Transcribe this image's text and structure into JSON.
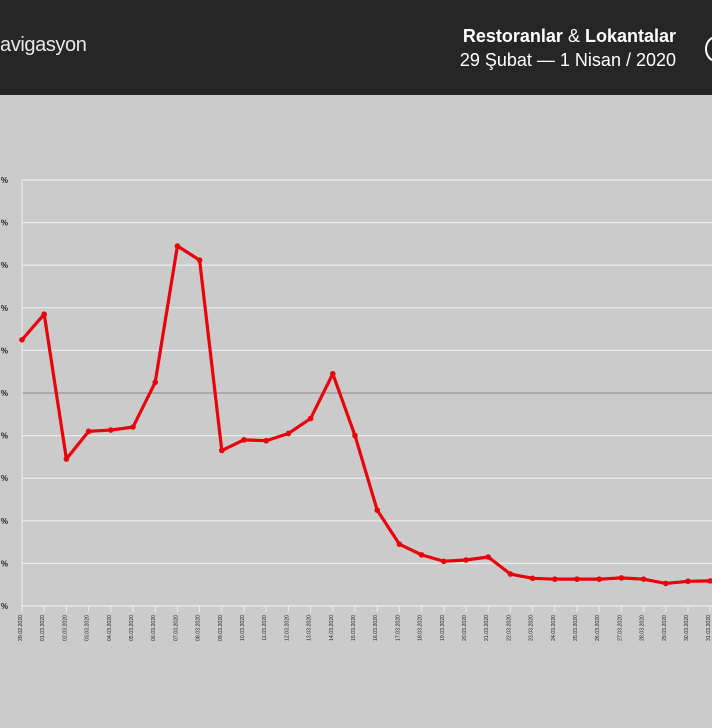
{
  "header": {
    "brand": "avigasyon",
    "title_part1": "Restoranlar",
    "title_amp": "&",
    "title_part2": "Lokantalar",
    "date_range": "29 Şubat  —  1 Nisan / 2020"
  },
  "chart_data": {
    "type": "line",
    "title": "",
    "xlabel": "",
    "ylabel": "",
    "ylim": [
      0,
      100
    ],
    "y_tick_labels": [
      "%",
      "%",
      "%",
      "%",
      "%",
      "%",
      "%",
      "%",
      "%",
      "%",
      "%"
    ],
    "grid": true,
    "x": [
      "29.02.2020",
      "01.03.2020",
      "02.03.2020",
      "03.03.2020",
      "04.03.2020",
      "05.03.2020",
      "06.03.2020",
      "07.03.2020",
      "08.03.2020",
      "09.03.2020",
      "10.03.2020",
      "11.03.2020",
      "12.03.2020",
      "13.03.2020",
      "14.03.2020",
      "15.03.2020",
      "16.03.2020",
      "17.03.2020",
      "18.03.2020",
      "19.03.2020",
      "20.03.2020",
      "21.03.2020",
      "22.03.2020",
      "23.03.2020",
      "24.03.2020",
      "25.03.2020",
      "26.03.2020",
      "27.03.2020",
      "28.03.2020",
      "29.03.2020",
      "30.03.2020",
      "31.03.2020"
    ],
    "series": [
      {
        "color": "#e8000b",
        "values": [
          62.5,
          68.5,
          34.5,
          41,
          41.3,
          42,
          52.5,
          84.5,
          81.2,
          36.5,
          39,
          38.8,
          40.5,
          44,
          54.5,
          40,
          22.5,
          14.5,
          12,
          10.5,
          10.8,
          11.5,
          7.5,
          6.5,
          6.3,
          6.3,
          6.3,
          6.6,
          6.3,
          5.3,
          5.8,
          5.9
        ]
      }
    ]
  }
}
